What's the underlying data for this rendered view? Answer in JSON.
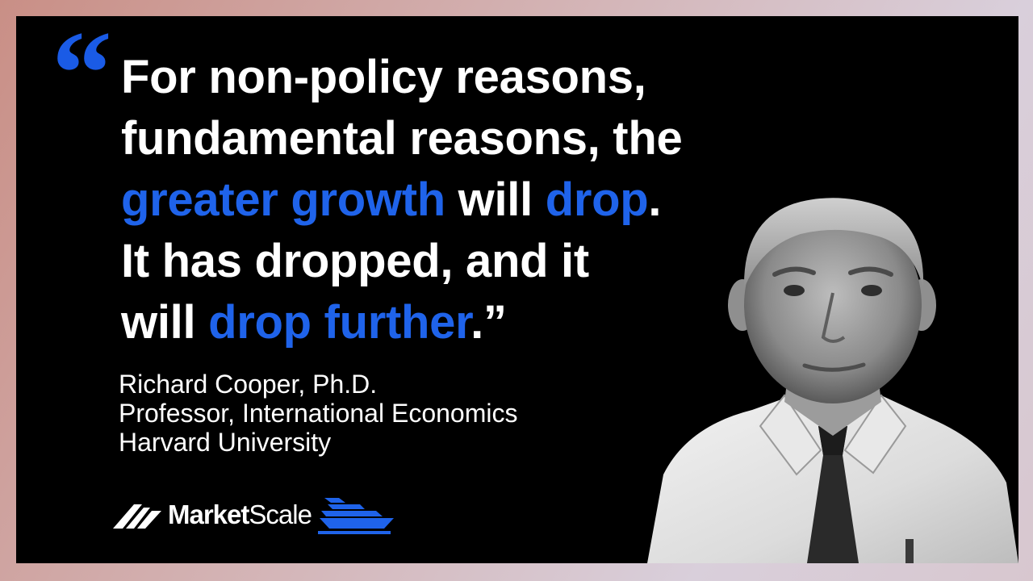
{
  "quote": {
    "open_mark": "“",
    "line1": "For non-policy reasons,",
    "line2": "fundamental reasons, the",
    "line3_hl1": "greater growth",
    "line3_mid": " will ",
    "line3_hl2": "drop",
    "line3_end": ".",
    "line4": "It has dropped, and it",
    "line5_start": "will ",
    "line5_hl": "drop further",
    "line5_end": ".",
    "close_mark": "”"
  },
  "attribution": {
    "name": "Richard Cooper, Ph.D.",
    "title": "Professor, International Economics",
    "org": "Harvard University"
  },
  "brand": {
    "name_part1": "Market",
    "name_part2": "Scale",
    "logo_icon": "market-scale-mark-icon",
    "boat_icon": "ship-icon"
  },
  "colors": {
    "accent": "#1f63ea",
    "text": "#ffffff",
    "background": "#000000"
  }
}
